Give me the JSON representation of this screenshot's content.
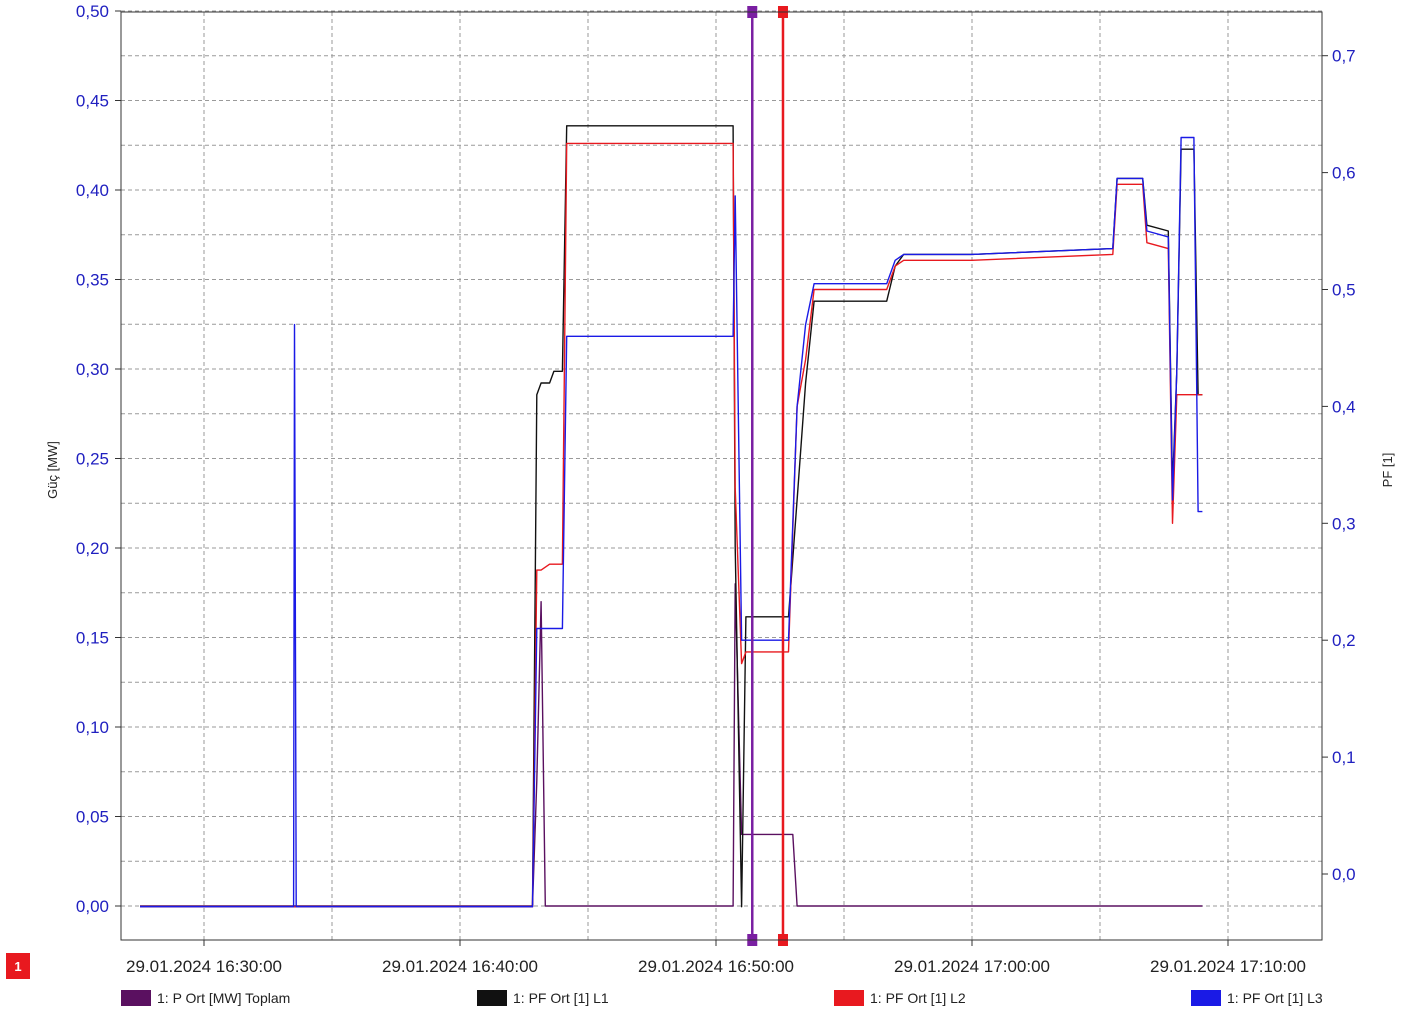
{
  "chart_data": {
    "type": "line",
    "ylabel_left": "Güç [MW]",
    "ylabel_right": "PF [1]",
    "ylim_left": [
      -0.02,
      0.505
    ],
    "ylim_right": [
      -0.055,
      0.735
    ],
    "yticks_left": [
      "0,00",
      "0,05",
      "0,10",
      "0,15",
      "0,20",
      "0,25",
      "0,30",
      "0,35",
      "0,40",
      "0,45",
      "0,50"
    ],
    "yticks_right": [
      "0,0",
      "0,1",
      "0,2",
      "0,3",
      "0,4",
      "0,5",
      "0,6",
      "0,7"
    ],
    "xticks": [
      "29.01.2024 16:30:00",
      "29.01.2024 16:40:00",
      "29.01.2024 16:50:00",
      "29.01.2024 17:00:00",
      "29.01.2024 17:10:00"
    ],
    "grid": true,
    "legend_position": "bottom",
    "cursor_badge": "1",
    "cursors": [
      {
        "time": "16:51:25",
        "color": "#7a1fa2"
      },
      {
        "time": "16:52:37",
        "color": "#e8191f"
      }
    ],
    "series": [
      {
        "name": "1: P Ort [MW] Toplam",
        "axis": "left",
        "color": "#5a1060",
        "points": [
          [
            "16:27:30",
            0.0
          ],
          [
            "16:42:50",
            0.0
          ],
          [
            "16:43:00",
            0.07
          ],
          [
            "16:43:10",
            0.17
          ],
          [
            "16:43:20",
            0.0
          ],
          [
            "16:50:40",
            0.0
          ],
          [
            "16:50:45",
            0.18
          ],
          [
            "16:51:00",
            0.04
          ],
          [
            "16:52:20",
            0.04
          ],
          [
            "16:53:00",
            0.04
          ],
          [
            "16:53:10",
            0.0
          ],
          [
            "17:09:00",
            0.0
          ]
        ]
      },
      {
        "name": "1: PF Ort [1] L1",
        "axis": "right",
        "color": "#111111",
        "points": [
          [
            "16:27:30",
            -0.028
          ],
          [
            "16:42:50",
            -0.028
          ],
          [
            "16:43:00",
            0.41
          ],
          [
            "16:43:10",
            0.42
          ],
          [
            "16:43:30",
            0.42
          ],
          [
            "16:43:40",
            0.43
          ],
          [
            "16:44:00",
            0.43
          ],
          [
            "16:44:10",
            0.64
          ],
          [
            "16:50:40",
            0.64
          ],
          [
            "16:50:45",
            0.28
          ],
          [
            "16:51:00",
            -0.028
          ],
          [
            "16:51:10",
            0.22
          ],
          [
            "16:52:50",
            0.22
          ],
          [
            "16:53:10",
            0.32
          ],
          [
            "16:53:30",
            0.42
          ],
          [
            "16:53:50",
            0.49
          ],
          [
            "16:56:40",
            0.49
          ],
          [
            "16:57:00",
            0.52
          ],
          [
            "16:57:20",
            0.53
          ],
          [
            "17:00:00",
            0.53
          ],
          [
            "17:05:30",
            0.535
          ],
          [
            "17:05:40",
            0.595
          ],
          [
            "17:06:40",
            0.595
          ],
          [
            "17:06:50",
            0.555
          ],
          [
            "17:07:40",
            0.55
          ],
          [
            "17:07:50",
            0.33
          ],
          [
            "17:08:00",
            0.43
          ],
          [
            "17:08:10",
            0.62
          ],
          [
            "17:08:40",
            0.62
          ],
          [
            "17:08:50",
            0.41
          ],
          [
            "17:09:00",
            0.41
          ]
        ]
      },
      {
        "name": "1: PF Ort [1] L2",
        "axis": "right",
        "color": "#e8191f",
        "points": [
          [
            "16:27:30",
            -0.028
          ],
          [
            "16:42:50",
            -0.028
          ],
          [
            "16:43:00",
            0.26
          ],
          [
            "16:43:10",
            0.26
          ],
          [
            "16:43:30",
            0.265
          ],
          [
            "16:43:40",
            0.265
          ],
          [
            "16:44:00",
            0.265
          ],
          [
            "16:44:10",
            0.625
          ],
          [
            "16:50:40",
            0.625
          ],
          [
            "16:50:45",
            0.33
          ],
          [
            "16:51:00",
            0.18
          ],
          [
            "16:51:10",
            0.19
          ],
          [
            "16:52:50",
            0.19
          ],
          [
            "16:53:10",
            0.4
          ],
          [
            "16:53:30",
            0.44
          ],
          [
            "16:53:50",
            0.5
          ],
          [
            "16:56:40",
            0.5
          ],
          [
            "16:57:00",
            0.52
          ],
          [
            "16:57:20",
            0.525
          ],
          [
            "17:00:00",
            0.525
          ],
          [
            "17:05:30",
            0.53
          ],
          [
            "17:05:40",
            0.59
          ],
          [
            "17:06:40",
            0.59
          ],
          [
            "17:06:50",
            0.54
          ],
          [
            "17:07:40",
            0.535
          ],
          [
            "17:07:50",
            0.3
          ],
          [
            "17:08:00",
            0.41
          ],
          [
            "17:08:10",
            0.41
          ],
          [
            "17:08:40",
            0.41
          ],
          [
            "17:08:50",
            0.41
          ],
          [
            "17:09:00",
            0.41
          ]
        ]
      },
      {
        "name": "1: PF Ort [1] L3",
        "axis": "right",
        "color": "#1a1ae6",
        "points": [
          [
            "16:27:30",
            -0.028
          ],
          [
            "16:33:30",
            -0.028
          ],
          [
            "16:33:32",
            0.47
          ],
          [
            "16:33:34",
            0.24
          ],
          [
            "16:33:36",
            -0.028
          ],
          [
            "16:42:50",
            -0.028
          ],
          [
            "16:43:00",
            0.21
          ],
          [
            "16:43:10",
            0.21
          ],
          [
            "16:43:30",
            0.21
          ],
          [
            "16:43:40",
            0.21
          ],
          [
            "16:44:00",
            0.21
          ],
          [
            "16:44:10",
            0.46
          ],
          [
            "16:50:40",
            0.46
          ],
          [
            "16:50:45",
            0.58
          ],
          [
            "16:51:00",
            0.2
          ],
          [
            "16:51:10",
            0.2
          ],
          [
            "16:52:50",
            0.2
          ],
          [
            "16:53:10",
            0.4
          ],
          [
            "16:53:30",
            0.47
          ],
          [
            "16:53:50",
            0.505
          ],
          [
            "16:56:40",
            0.505
          ],
          [
            "16:57:00",
            0.525
          ],
          [
            "16:57:20",
            0.53
          ],
          [
            "17:00:00",
            0.53
          ],
          [
            "17:05:30",
            0.535
          ],
          [
            "17:05:40",
            0.595
          ],
          [
            "17:06:40",
            0.595
          ],
          [
            "17:06:50",
            0.55
          ],
          [
            "17:07:40",
            0.545
          ],
          [
            "17:07:50",
            0.32
          ],
          [
            "17:08:00",
            0.43
          ],
          [
            "17:08:10",
            0.63
          ],
          [
            "17:08:40",
            0.63
          ],
          [
            "17:08:50",
            0.31
          ],
          [
            "17:09:00",
            0.31
          ]
        ]
      }
    ]
  }
}
